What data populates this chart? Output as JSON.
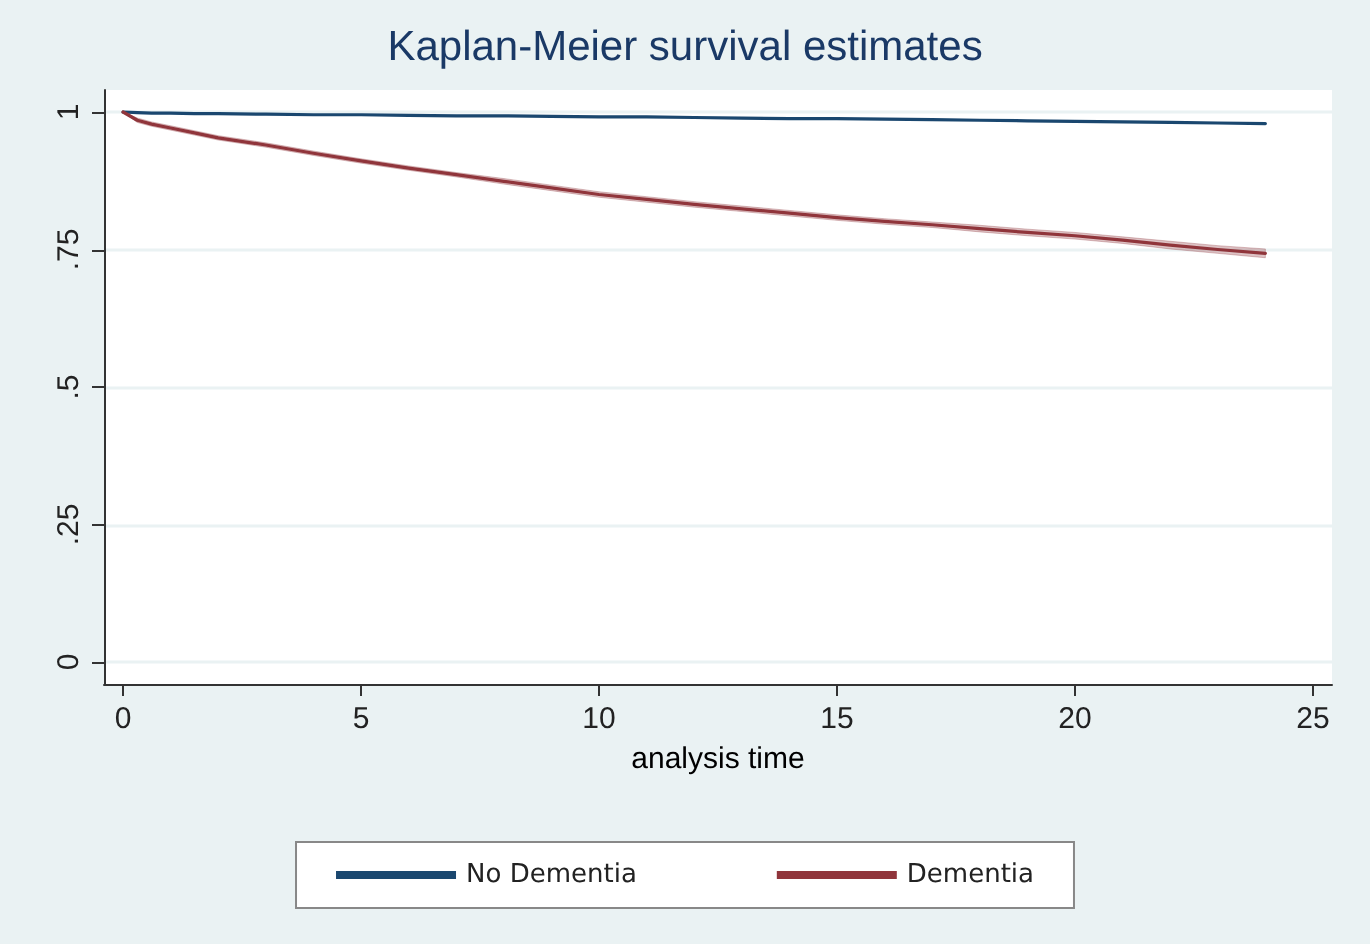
{
  "chart_data": {
    "type": "line",
    "title": "Kaplan-Meier survival estimates",
    "xlabel": "analysis time",
    "x": [
      0,
      0.3,
      0.6,
      1,
      1.5,
      2,
      3,
      4,
      5,
      6,
      7,
      8,
      9,
      10,
      11,
      12,
      13,
      14,
      15,
      16,
      17,
      18,
      19,
      20,
      21,
      22,
      23,
      24
    ],
    "series": [
      {
        "name": "No Dementia",
        "color": "#1a476f",
        "values": [
          1,
          0.999,
          0.998,
          0.998,
          0.997,
          0.997,
          0.996,
          0.995,
          0.995,
          0.994,
          0.993,
          0.993,
          0.992,
          0.991,
          0.991,
          0.99,
          0.989,
          0.988,
          0.988,
          0.987,
          0.986,
          0.985,
          0.984,
          0.983,
          0.982,
          0.981,
          0.98,
          0.979
        ]
      },
      {
        "name": "Dementia",
        "color": "#90353b",
        "values": [
          1,
          0.985,
          0.978,
          0.971,
          0.962,
          0.953,
          0.94,
          0.925,
          0.911,
          0.898,
          0.886,
          0.874,
          0.862,
          0.85,
          0.841,
          0.832,
          0.824,
          0.816,
          0.808,
          0.801,
          0.795,
          0.788,
          0.781,
          0.775,
          0.767,
          0.758,
          0.75,
          0.743
        ],
        "lower": [
          1,
          0.981,
          0.974,
          0.967,
          0.958,
          0.949,
          0.936,
          0.921,
          0.907,
          0.894,
          0.882,
          0.869,
          0.857,
          0.845,
          0.836,
          0.827,
          0.819,
          0.811,
          0.803,
          0.796,
          0.79,
          0.782,
          0.775,
          0.769,
          0.761,
          0.751,
          0.743,
          0.735
        ],
        "upper": [
          1,
          0.989,
          0.982,
          0.975,
          0.966,
          0.957,
          0.944,
          0.929,
          0.915,
          0.902,
          0.89,
          0.879,
          0.867,
          0.855,
          0.846,
          0.837,
          0.829,
          0.821,
          0.813,
          0.806,
          0.8,
          0.794,
          0.787,
          0.781,
          0.773,
          0.765,
          0.757,
          0.751
        ]
      }
    ],
    "xlim": [
      -0.4,
      25.4
    ],
    "xticks": [
      0,
      5,
      10,
      15,
      20,
      25
    ],
    "ylim": [
      -0.04,
      1.04
    ],
    "yticks": [
      {
        "value": 0,
        "label": "0"
      },
      {
        "value": 0.25,
        "label": ".25"
      },
      {
        "value": 0.5,
        "label": ".5"
      },
      {
        "value": 0.75,
        "label": ".75"
      },
      {
        "value": 1,
        "label": "1"
      }
    ],
    "grid": "y",
    "legend": "bottom",
    "marker": "none",
    "line_style": "solid"
  }
}
